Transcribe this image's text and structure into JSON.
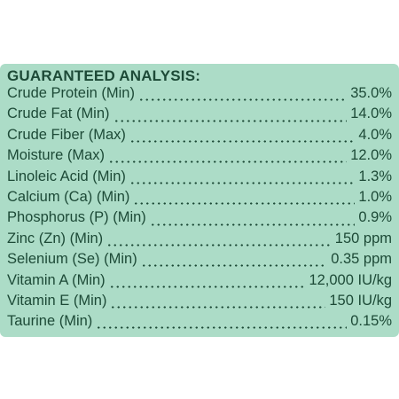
{
  "header": {
    "title": "GUARANTEED ANALYSIS:"
  },
  "table": {
    "rows": [
      [
        "Crude Protein (Min)",
        "35.0%"
      ],
      [
        "Crude Fat (Min)",
        "14.0%"
      ],
      [
        "Crude Fiber (Max)",
        "4.0%"
      ],
      [
        "Moisture (Max)",
        "12.0%"
      ],
      [
        "Linoleic Acid (Min)",
        "1.3%"
      ],
      [
        "Calcium (Ca) (Min)",
        "1.0%"
      ],
      [
        "Phosphorus (P) (Min)",
        "0.9%"
      ],
      [
        "Zinc (Zn) (Min)",
        "150 ppm"
      ],
      [
        "Selenium (Se) (Min)",
        "0.35 ppm"
      ],
      [
        "Vitamin A (Min)",
        "12,000 IU/kg"
      ],
      [
        "Vitamin E (Min)",
        "150 IU/kg"
      ],
      [
        "Taurine (Min)",
        "0.15%"
      ]
    ]
  }
}
